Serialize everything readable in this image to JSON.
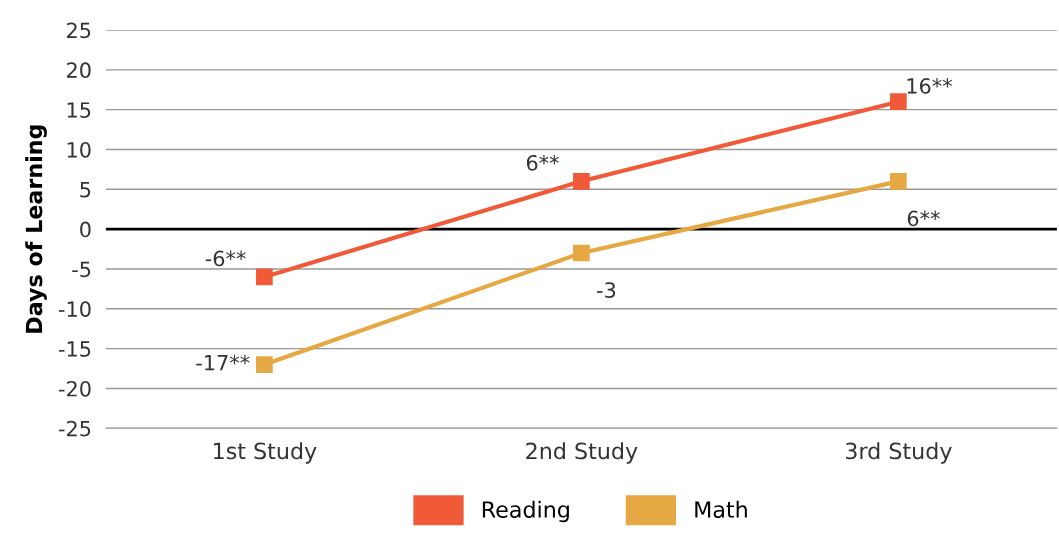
{
  "chart_data": {
    "type": "line",
    "ylabel": "Days of Learning",
    "categories": [
      "1st Study",
      "2nd Study",
      "3rd Study"
    ],
    "series": [
      {
        "name": "Reading",
        "color": "#f05a38",
        "values": [
          -6,
          6,
          16
        ],
        "value_labels": [
          "-6**",
          "6**",
          "16**"
        ]
      },
      {
        "name": "Math",
        "color": "#e6a843",
        "values": [
          -17,
          -3,
          6
        ],
        "value_labels": [
          "-17**",
          "-3",
          "6**"
        ]
      }
    ],
    "ylim": [
      -25,
      25
    ],
    "yticks": [
      -25,
      -20,
      -15,
      -10,
      -5,
      0,
      5,
      10,
      15,
      20,
      25
    ],
    "ref_lines": [
      {
        "axis": "y",
        "value": 0,
        "color": "#000000"
      }
    ],
    "grid": "y",
    "legend": "bottom",
    "marker": "square",
    "line_style": "solid"
  }
}
